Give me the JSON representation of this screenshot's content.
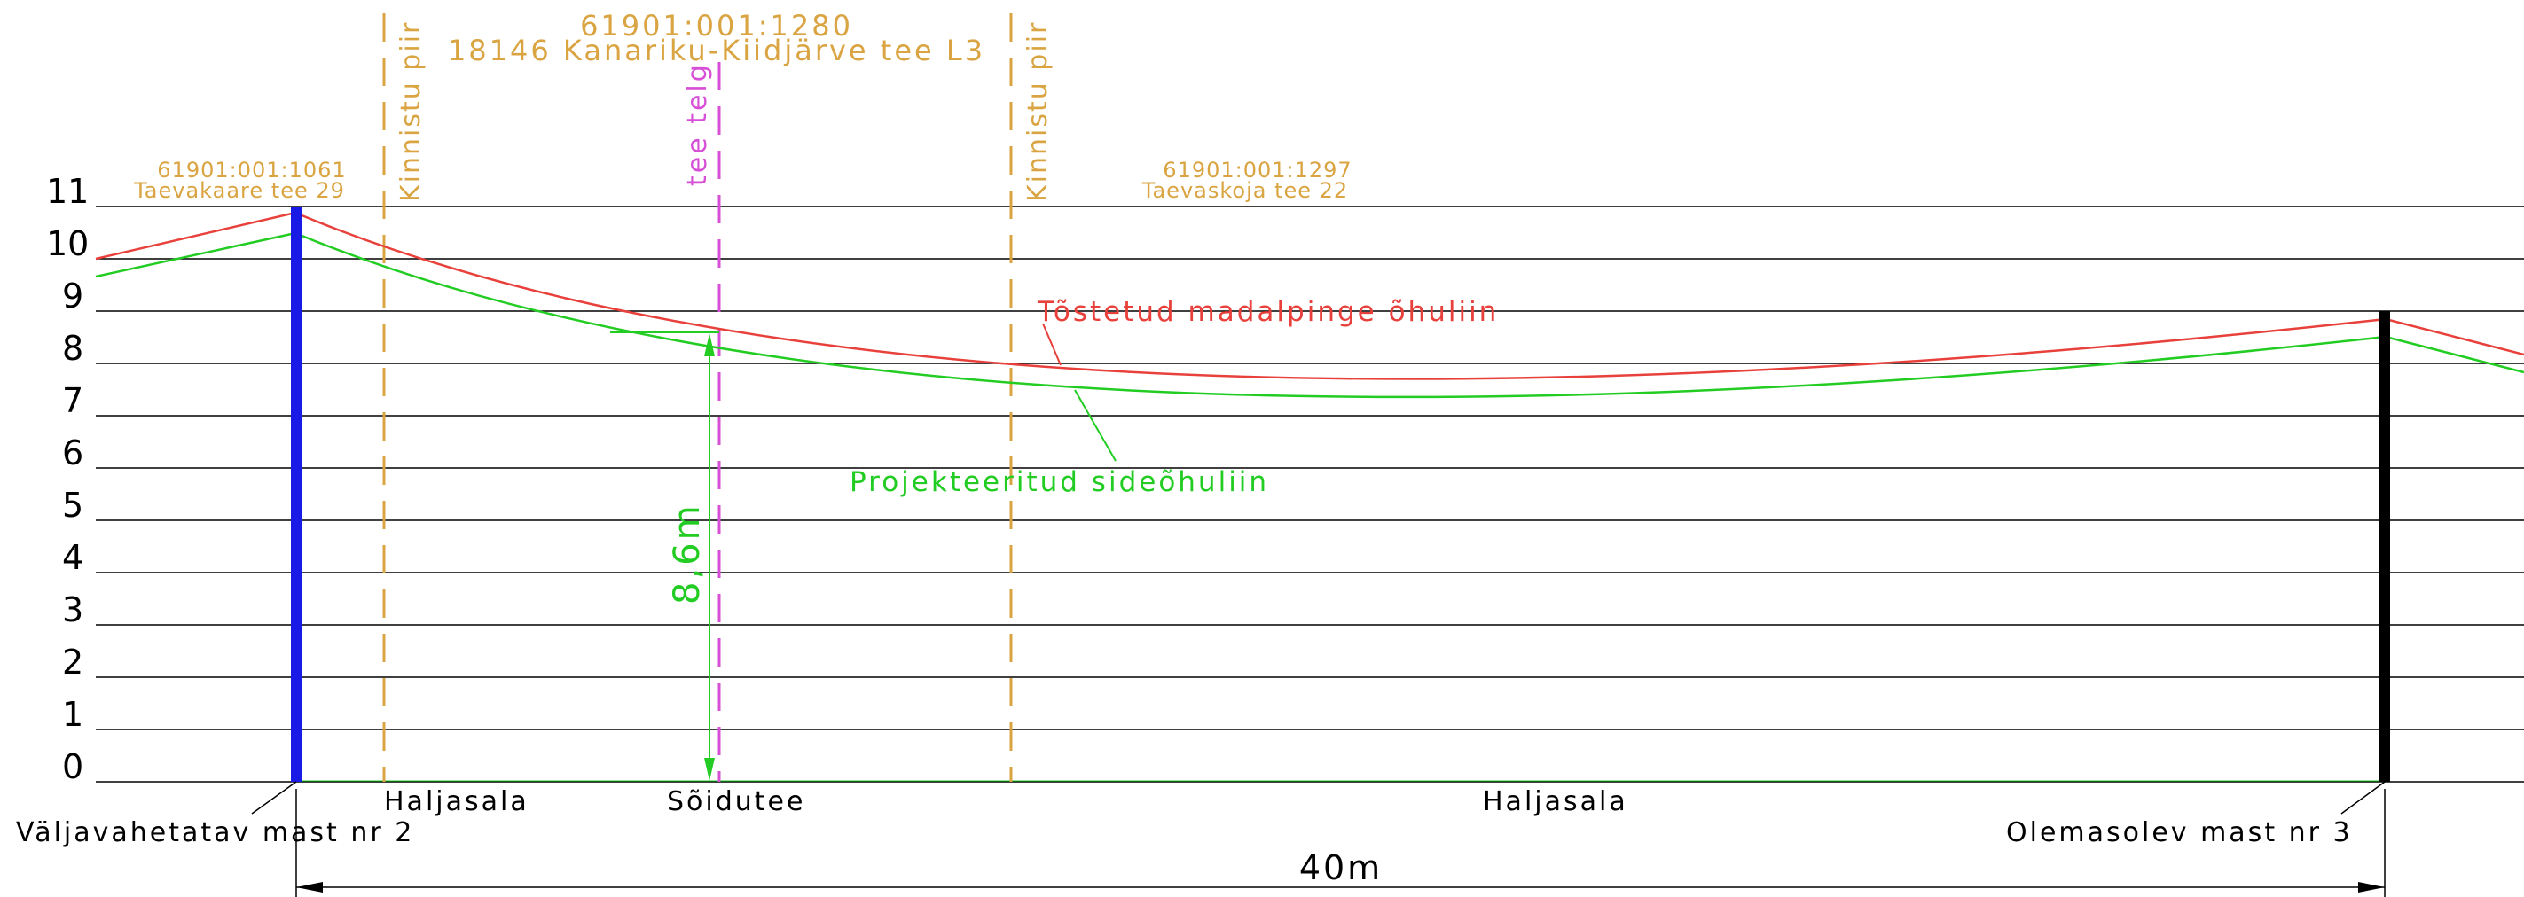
{
  "colors": {
    "grid": "#000000",
    "parcel": "#d9a441",
    "road_axis": "#d64fd6",
    "raised_line": "#e8413c",
    "designed_line": "#22cc22",
    "dimension_green": "#22cc22",
    "mast_replaced": "#1a1ae6",
    "mast_existing": "#000000"
  },
  "y_axis": {
    "ticks": [
      "0",
      "1",
      "2",
      "3",
      "4",
      "5",
      "6",
      "7",
      "8",
      "9",
      "10",
      "11"
    ]
  },
  "parcels": {
    "center": {
      "code": "61901:001:1280",
      "name": "18146 Kanariku-Kiidjärve tee L3"
    },
    "left": {
      "code": "61901:001:1061",
      "name": "Taevakaare tee 29"
    },
    "right": {
      "code": "61901:001:1297",
      "name": "Taevaskoja tee 22"
    }
  },
  "boundary_labels": {
    "left": "Kinnistu piir",
    "right": "Kinnistu piir",
    "road_axis": "tee telg"
  },
  "lines": {
    "raised": "Tõstetud madalpinge õhuliin",
    "designed": "Projekteeritud sideõhuliin"
  },
  "clearance": "8,6m",
  "ground": {
    "left": "Haljasala",
    "road": "Sõidutee",
    "right": "Haljasala"
  },
  "masts": {
    "left": "Väljavahetatav mast nr 2",
    "right": "Olemasolev mast nr 3"
  },
  "span": "40m"
}
